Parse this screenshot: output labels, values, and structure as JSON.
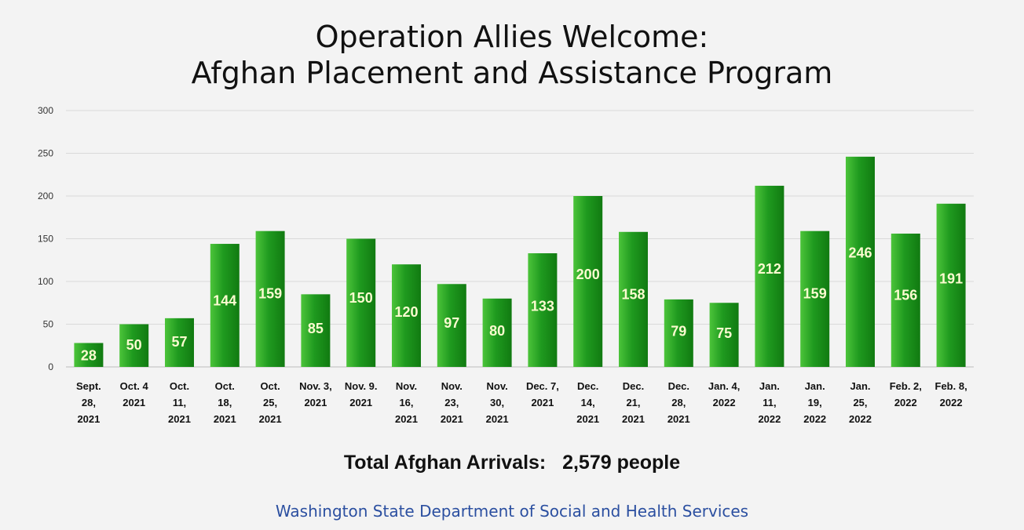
{
  "chart_data": {
    "type": "bar",
    "title_lines": [
      "Operation Allies Welcome:",
      "Afghan Placement and Assistance Program"
    ],
    "xlabel": "",
    "ylabel": "",
    "ylim": [
      0,
      300
    ],
    "yticks": [
      0,
      50,
      100,
      150,
      200,
      250,
      300
    ],
    "grid": true,
    "bar_color": "#2ea82e",
    "categories": [
      [
        "Sept.",
        "28,",
        "2021"
      ],
      [
        "Oct. 4",
        "2021"
      ],
      [
        "Oct.",
        "11,",
        "2021"
      ],
      [
        "Oct.",
        "18,",
        "2021"
      ],
      [
        "Oct.",
        "25,",
        "2021"
      ],
      [
        "Nov. 3,",
        "2021"
      ],
      [
        "Nov. 9.",
        "2021"
      ],
      [
        "Nov.",
        "16,",
        "2021"
      ],
      [
        "Nov.",
        "23,",
        "2021"
      ],
      [
        "Nov.",
        "30,",
        "2021"
      ],
      [
        "Dec. 7,",
        "2021"
      ],
      [
        "Dec.",
        "14,",
        "2021"
      ],
      [
        "Dec.",
        "21,",
        "2021"
      ],
      [
        "Dec.",
        "28,",
        "2021"
      ],
      [
        "Jan. 4,",
        "2022"
      ],
      [
        "Jan.",
        "11,",
        "2022"
      ],
      [
        "Jan.",
        "19,",
        "2022"
      ],
      [
        "Jan.",
        "25,",
        "2022"
      ],
      [
        "Feb. 2,",
        "2022"
      ],
      [
        "Feb. 8,",
        "2022"
      ]
    ],
    "values": [
      28,
      50,
      57,
      144,
      159,
      85,
      150,
      120,
      97,
      80,
      133,
      200,
      158,
      79,
      75,
      212,
      159,
      246,
      156,
      191
    ]
  },
  "footer": {
    "total": "Total Afghan Arrivals:   2,579 people",
    "source": "Washington State Department of Social and Health Services"
  }
}
